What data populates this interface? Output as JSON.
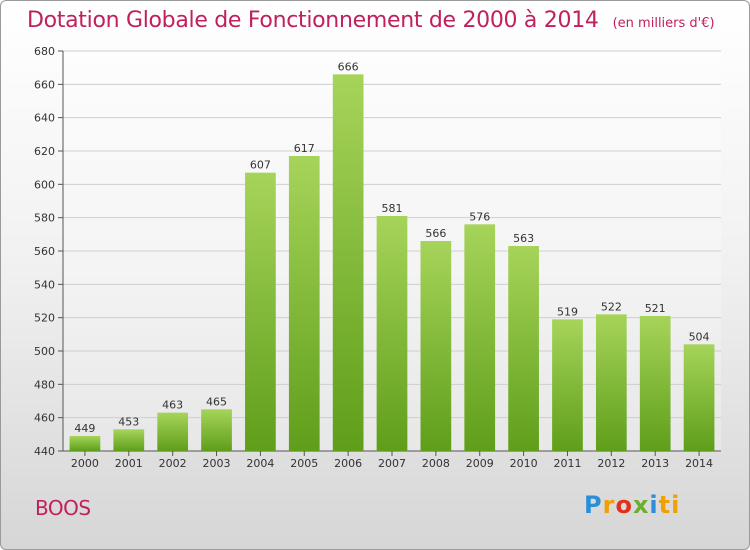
{
  "header": {
    "title": "Dotation Globale de Fonctionnement de 2000 à 2014",
    "unit": "(en milliers d'€)"
  },
  "footer": {
    "commune": "BOOS",
    "logo": [
      "P",
      "r",
      "o",
      "x",
      "i",
      "ti"
    ]
  },
  "colors": {
    "title": "#c0205e",
    "bar_top": "#a6d45a",
    "bar_bottom": "#5f9e1a"
  },
  "chart_data": {
    "type": "bar",
    "title": "Dotation Globale de Fonctionnement de 2000 à 2014",
    "subtitle": "(en milliers d'€)",
    "xlabel": "",
    "ylabel": "",
    "categories": [
      "2000",
      "2001",
      "2002",
      "2003",
      "2004",
      "2005",
      "2006",
      "2007",
      "2008",
      "2009",
      "2010",
      "2011",
      "2012",
      "2013",
      "2014"
    ],
    "values": [
      449,
      453,
      463,
      465,
      607,
      617,
      666,
      581,
      566,
      576,
      563,
      519,
      522,
      521,
      504
    ],
    "ylim": [
      440,
      680
    ],
    "yticks": [
      440,
      460,
      480,
      500,
      520,
      540,
      560,
      580,
      600,
      620,
      640,
      660,
      680
    ],
    "grid": true,
    "legend": "none"
  }
}
